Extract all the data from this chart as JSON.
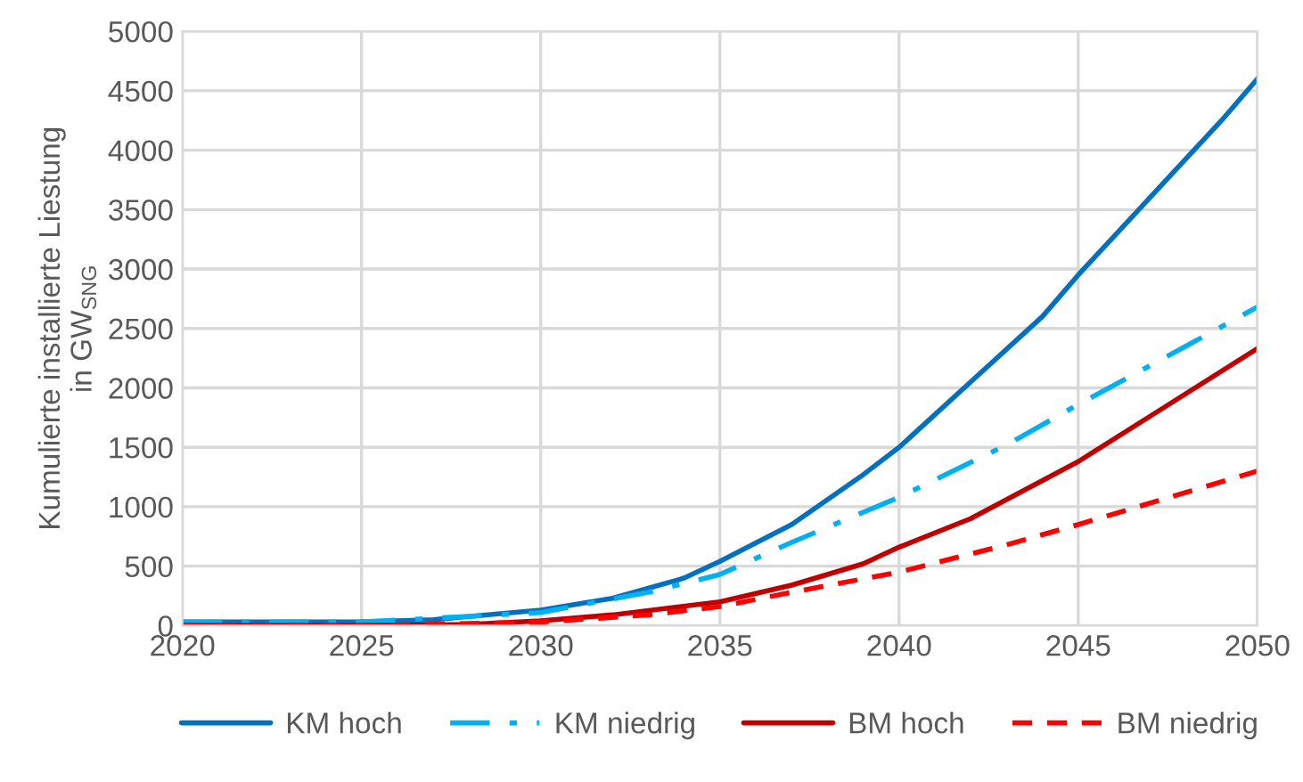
{
  "chart_data": {
    "type": "line",
    "ylabel": "Kumulierte installierte Liestung\nin GW$_{SNG}$",
    "xlim": [
      2020,
      2050
    ],
    "xticks": [
      2020,
      2025,
      2030,
      2035,
      2040,
      2045,
      2050
    ],
    "ylim": [
      0,
      5000
    ],
    "yticks": [
      0,
      500,
      1000,
      1500,
      2000,
      2500,
      3000,
      3500,
      4000,
      4500,
      5000
    ],
    "grid": true,
    "legend": "bottom",
    "marker": "none",
    "series": [
      {
        "name": "KM hoch",
        "color": "#0070c0",
        "line_style": "solid",
        "x": [
          2020,
          2025,
          2027,
          2030,
          2032,
          2034,
          2035,
          2037,
          2039,
          2040,
          2042,
          2044,
          2045,
          2047,
          2049,
          2050
        ],
        "values": [
          30,
          30,
          50,
          130,
          230,
          400,
          540,
          850,
          1270,
          1500,
          2050,
          2600,
          2950,
          3600,
          4250,
          4600
        ]
      },
      {
        "name": "KM niedrig",
        "color": "#00b0f0",
        "line_style": "dashdot",
        "x": [
          2020,
          2025,
          2030,
          2033,
          2035,
          2037,
          2040,
          2043,
          2045,
          2048,
          2050
        ],
        "values": [
          30,
          30,
          110,
          280,
          430,
          700,
          1080,
          1520,
          1860,
          2350,
          2680
        ]
      },
      {
        "name": "BM hoch",
        "color": "#c00000",
        "line_style": "solid",
        "x": [
          2020,
          2025,
          2028,
          2030,
          2032,
          2035,
          2037,
          2039,
          2040,
          2042,
          2045,
          2047,
          2050
        ],
        "values": [
          0,
          0,
          10,
          40,
          90,
          200,
          340,
          520,
          660,
          900,
          1380,
          1760,
          2330
        ]
      },
      {
        "name": "BM niedrig",
        "color": "#ff0000",
        "line_style": "dashed",
        "x": [
          2020,
          2025,
          2030,
          2033,
          2035,
          2037,
          2040,
          2043,
          2045,
          2048,
          2050
        ],
        "values": [
          0,
          0,
          30,
          90,
          160,
          280,
          450,
          680,
          850,
          1120,
          1300
        ]
      }
    ]
  }
}
